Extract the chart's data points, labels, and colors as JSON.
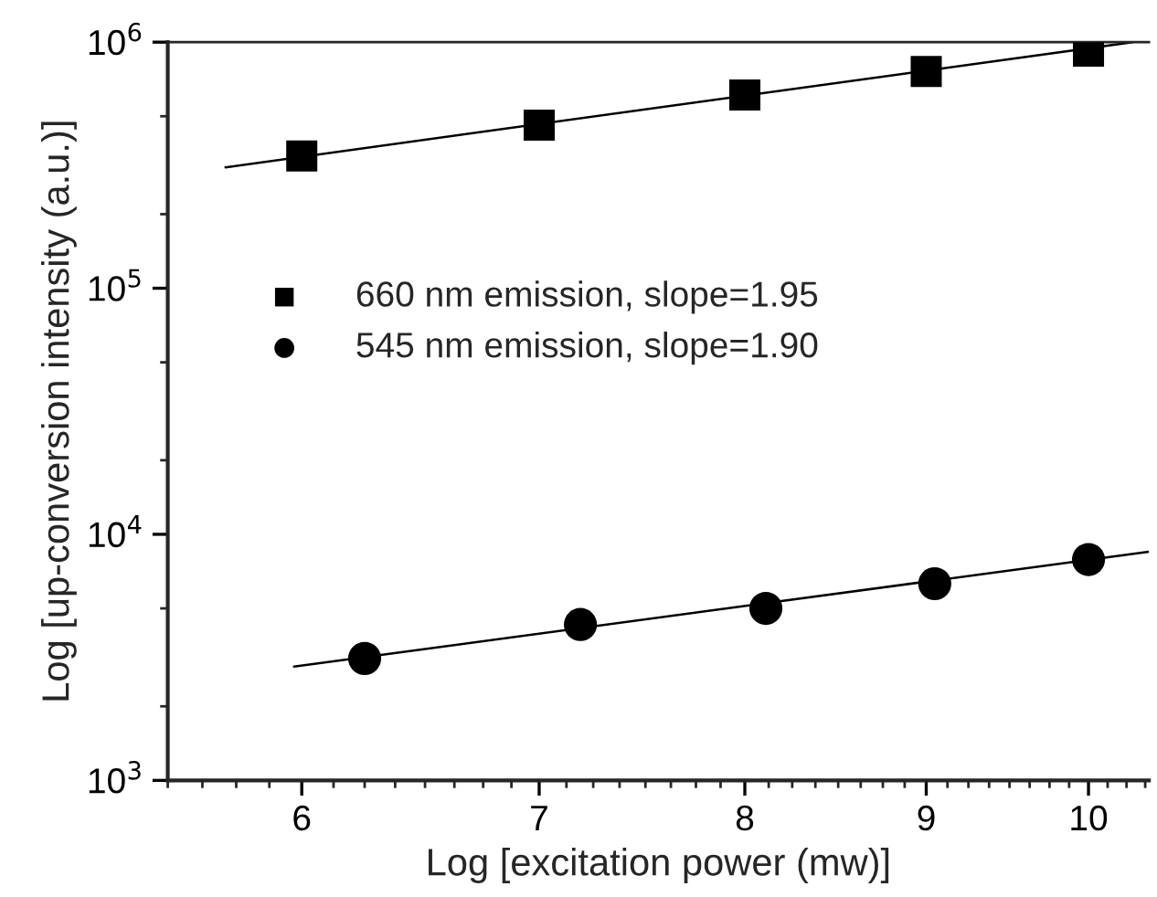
{
  "chart_data": {
    "type": "scatter",
    "xlabel": "Log [excitation power (mw)]",
    "ylabel": "Log [up-conversion intensity (a.u.)]",
    "log": "xy",
    "xlim": [
      5.5,
      10.4
    ],
    "xticks": [
      6,
      7,
      8,
      9,
      10
    ],
    "ylim": [
      1000,
      1000000
    ],
    "yticks": [
      {
        "value": 1000,
        "label": "10$^{3}$"
      },
      {
        "value": 10000,
        "label": "10$^{4}$"
      },
      {
        "value": 100000,
        "label": "10$^{5}$"
      },
      {
        "value": 1000000,
        "label": "10$^{6}$"
      }
    ],
    "grid": false,
    "legend": "center left",
    "series": [
      {
        "name": "660 nm emission, slope=1.95",
        "color": "#000000",
        "marker": "square",
        "x": [
          6,
          7,
          8,
          9,
          10
        ],
        "values": [
          345000,
          460000,
          610000,
          760000,
          920000
        ]
      },
      {
        "name": "545 nm emission, slope=1.90",
        "color": "#000000",
        "marker": "circle",
        "x": [
          6.25,
          7.19,
          8.11,
          9.05,
          10
        ],
        "values": [
          3130,
          4300,
          5000,
          6300,
          7900
        ]
      },
      {
        "type": "line",
        "color": "#000000",
        "marker": "none",
        "x": [
          5.71,
          10.29
        ],
        "values": [
          310000,
          1000000
        ]
      },
      {
        "type": "line",
        "color": "#000000",
        "marker": "none",
        "x": [
          5.97,
          10.4
        ],
        "values": [
          2900,
          8500
        ]
      }
    ]
  }
}
